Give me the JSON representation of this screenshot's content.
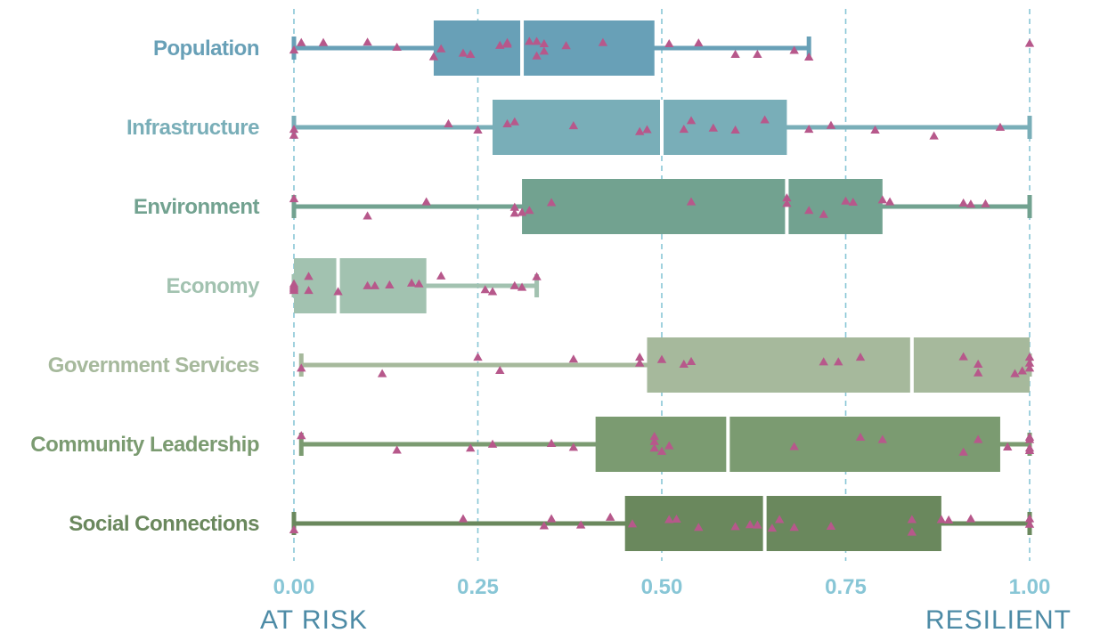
{
  "chart_data": {
    "type": "boxplot",
    "title": "",
    "xlabel": "",
    "ylabel": "",
    "xlim": [
      0,
      1
    ],
    "x_ticks": [
      0,
      0.25,
      0.5,
      0.75,
      1.0
    ],
    "x_tick_labels": [
      "0.00",
      "0.25",
      "0.50",
      "0.75",
      "1.00"
    ],
    "grid": "vertical dashed",
    "axis_end_labels": {
      "left": "AT RISK",
      "right": "RESILIENT"
    },
    "colors": {
      "point": "#b7588b",
      "tick_text": "#88c6d6",
      "end_text": "#4d8ba6",
      "grid": "#88c6d6"
    },
    "categories": [
      {
        "name": "Population",
        "color": "#68a0b7",
        "whisker_low": 0.0,
        "q1": 0.19,
        "median": 0.31,
        "q3": 0.49,
        "whisker_high": 0.7,
        "points": [
          [
            0.0,
            0.05
          ],
          [
            0.01,
            -0.14
          ],
          [
            0.04,
            -0.14
          ],
          [
            0.1,
            -0.15
          ],
          [
            0.14,
            -0.02
          ],
          [
            0.19,
            0.22
          ],
          [
            0.2,
            0.02
          ],
          [
            0.23,
            0.13
          ],
          [
            0.24,
            0.16
          ],
          [
            0.28,
            -0.07
          ],
          [
            0.29,
            -0.14
          ],
          [
            0.29,
            -0.1
          ],
          [
            0.32,
            -0.17
          ],
          [
            0.33,
            -0.17
          ],
          [
            0.33,
            0.2
          ],
          [
            0.34,
            -0.11
          ],
          [
            0.34,
            0.08
          ],
          [
            0.37,
            -0.06
          ],
          [
            0.42,
            -0.14
          ],
          [
            0.51,
            -0.11
          ],
          [
            0.55,
            -0.13
          ],
          [
            0.6,
            0.16
          ],
          [
            0.63,
            0.16
          ],
          [
            0.68,
            0.06
          ],
          [
            0.7,
            0.23
          ],
          [
            1.0,
            -0.12
          ]
        ]
      },
      {
        "name": "Infrastructure",
        "color": "#79aeb8",
        "whisker_low": 0.0,
        "q1": 0.27,
        "median": 0.5,
        "q3": 0.67,
        "whisker_high": 1.0,
        "points": [
          [
            0.0,
            0.05
          ],
          [
            0.0,
            0.2
          ],
          [
            0.21,
            -0.09
          ],
          [
            0.25,
            0.07
          ],
          [
            0.29,
            -0.09
          ],
          [
            0.3,
            -0.14
          ],
          [
            0.38,
            -0.04
          ],
          [
            0.47,
            0.11
          ],
          [
            0.48,
            0.06
          ],
          [
            0.54,
            -0.17
          ],
          [
            0.53,
            0.05
          ],
          [
            0.57,
            0.02
          ],
          [
            0.6,
            0.07
          ],
          [
            0.64,
            -0.19
          ],
          [
            0.7,
            0.05
          ],
          [
            0.73,
            -0.05
          ],
          [
            0.79,
            0.07
          ],
          [
            0.87,
            0.22
          ],
          [
            0.96,
            0.0
          ]
        ]
      },
      {
        "name": "Environment",
        "color": "#72a290",
        "whisker_low": 0.0,
        "q1": 0.31,
        "median": 0.67,
        "q3": 0.8,
        "whisker_high": 1.0,
        "points": [
          [
            0.0,
            -0.2
          ],
          [
            0.1,
            0.24
          ],
          [
            0.18,
            -0.12
          ],
          [
            0.3,
            0.02
          ],
          [
            0.3,
            0.17
          ],
          [
            0.31,
            0.15
          ],
          [
            0.32,
            0.1
          ],
          [
            0.35,
            -0.1
          ],
          [
            0.54,
            -0.12
          ],
          [
            0.67,
            -0.22
          ],
          [
            0.67,
            -0.08
          ],
          [
            0.7,
            0.1
          ],
          [
            0.72,
            0.2
          ],
          [
            0.75,
            -0.14
          ],
          [
            0.76,
            -0.11
          ],
          [
            0.8,
            -0.17
          ],
          [
            0.81,
            -0.12
          ],
          [
            0.91,
            -0.09
          ],
          [
            0.92,
            -0.06
          ],
          [
            0.94,
            -0.07
          ]
        ]
      },
      {
        "name": "Economy",
        "color": "#a2c2b0",
        "whisker_low": 0.0,
        "q1": 0.0,
        "median": 0.06,
        "q3": 0.18,
        "whisker_high": 0.33,
        "points": [
          [
            0.0,
            -0.05
          ],
          [
            0.0,
            0.0
          ],
          [
            0.0,
            0.04
          ],
          [
            0.0,
            0.08
          ],
          [
            0.0,
            0.12
          ],
          [
            0.02,
            -0.24
          ],
          [
            0.02,
            0.12
          ],
          [
            0.06,
            0.15
          ],
          [
            0.1,
            0.0
          ],
          [
            0.11,
            0.0
          ],
          [
            0.13,
            -0.02
          ],
          [
            0.16,
            -0.07
          ],
          [
            0.17,
            -0.05
          ],
          [
            0.2,
            -0.25
          ],
          [
            0.26,
            0.1
          ],
          [
            0.27,
            0.15
          ],
          [
            0.3,
            0.0
          ],
          [
            0.31,
            0.04
          ],
          [
            0.33,
            -0.23
          ]
        ]
      },
      {
        "name": "Government Services",
        "color": "#a6b99c",
        "whisker_low": 0.01,
        "q1": 0.48,
        "median": 0.84,
        "q3": 1.0,
        "whisker_high": 1.0,
        "points": [
          [
            0.01,
            0.08
          ],
          [
            0.12,
            0.22
          ],
          [
            0.25,
            -0.2
          ],
          [
            0.28,
            0.14
          ],
          [
            0.38,
            -0.15
          ],
          [
            0.47,
            -0.2
          ],
          [
            0.47,
            -0.05
          ],
          [
            0.5,
            -0.14
          ],
          [
            0.53,
            -0.02
          ],
          [
            0.54,
            -0.09
          ],
          [
            0.72,
            -0.08
          ],
          [
            0.74,
            -0.08
          ],
          [
            0.77,
            -0.2
          ],
          [
            0.91,
            -0.21
          ],
          [
            0.93,
            -0.02
          ],
          [
            0.93,
            0.2
          ],
          [
            0.98,
            0.22
          ],
          [
            0.99,
            0.15
          ],
          [
            1.0,
            -0.2
          ],
          [
            1.0,
            -0.05
          ],
          [
            1.0,
            0.08
          ]
        ]
      },
      {
        "name": "Community Leadership",
        "color": "#7b9b71",
        "whisker_low": 0.01,
        "q1": 0.41,
        "median": 0.59,
        "q3": 0.96,
        "whisker_high": 1.0,
        "points": [
          [
            0.01,
            -0.22
          ],
          [
            0.14,
            0.15
          ],
          [
            0.24,
            0.1
          ],
          [
            0.27,
            0.0
          ],
          [
            0.35,
            -0.02
          ],
          [
            0.38,
            0.08
          ],
          [
            0.49,
            -0.2
          ],
          [
            0.49,
            -0.07
          ],
          [
            0.49,
            0.1
          ],
          [
            0.5,
            0.18
          ],
          [
            0.51,
            0.04
          ],
          [
            0.68,
            0.06
          ],
          [
            0.77,
            -0.18
          ],
          [
            0.8,
            -0.12
          ],
          [
            0.91,
            0.2
          ],
          [
            0.93,
            -0.12
          ],
          [
            0.97,
            0.07
          ],
          [
            1.0,
            -0.18
          ],
          [
            1.0,
            -0.12
          ],
          [
            1.0,
            0.1
          ],
          [
            1.0,
            0.16
          ]
        ]
      },
      {
        "name": "Social Connections",
        "color": "#6a885d",
        "whisker_low": 0.0,
        "q1": 0.45,
        "median": 0.64,
        "q3": 0.88,
        "whisker_high": 1.0,
        "points": [
          [
            0.0,
            0.16
          ],
          [
            0.23,
            -0.12
          ],
          [
            0.34,
            0.06
          ],
          [
            0.35,
            -0.12
          ],
          [
            0.39,
            0.04
          ],
          [
            0.43,
            -0.16
          ],
          [
            0.46,
            0.01
          ],
          [
            0.51,
            -0.1
          ],
          [
            0.52,
            -0.11
          ],
          [
            0.55,
            0.1
          ],
          [
            0.6,
            0.08
          ],
          [
            0.62,
            0.03
          ],
          [
            0.63,
            0.04
          ],
          [
            0.65,
            0.12
          ],
          [
            0.66,
            -0.1
          ],
          [
            0.68,
            0.1
          ],
          [
            0.73,
            0.07
          ],
          [
            0.84,
            -0.1
          ],
          [
            0.84,
            0.22
          ],
          [
            0.88,
            -0.1
          ],
          [
            0.89,
            -0.09
          ],
          [
            0.92,
            -0.12
          ],
          [
            1.0,
            -0.12
          ],
          [
            1.0,
            0.02
          ]
        ]
      }
    ]
  }
}
